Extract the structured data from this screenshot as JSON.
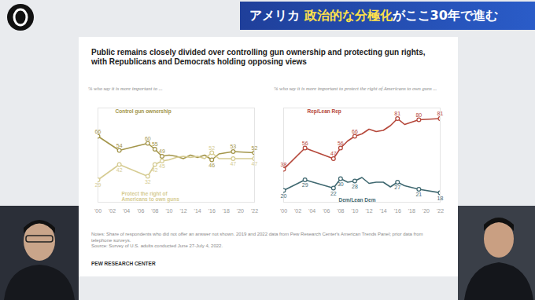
{
  "header": {
    "prefix": "アメリカ ",
    "highlight": "政治的な分極化",
    "suffix": "がここ30年で進む"
  },
  "title": "Public remains closely divided over controlling gun ownership and protecting gun rights, with Republicans and Democrats holding opposing views",
  "notes": [
    "Notes: Share of respondents who did not offer an answer not shown. 2019 and 2022 data from Pew Research Center's American Trends Panel; prior data from telephone surveys.",
    "Source: Survey of U.S. adults conducted June 27-July 4, 2022."
  ],
  "source": "PEW RESEARCH CENTER",
  "chart_data": [
    {
      "type": "line",
      "subtitle": "% who say it is more important to ...",
      "x": [
        2000,
        2003,
        2007,
        2008,
        2009,
        2010,
        2011,
        2012,
        2013,
        2014,
        2015,
        2016,
        2017,
        2019,
        2022
      ],
      "xlim": [
        2000,
        2022
      ],
      "xticks": [
        {
          "value": 2000,
          "label": "'00"
        },
        {
          "value": 2002,
          "label": "'02"
        },
        {
          "value": 2004,
          "label": "'04"
        },
        {
          "value": 2006,
          "label": "'06"
        },
        {
          "value": 2008,
          "label": "'08"
        },
        {
          "value": 2010,
          "label": "'10"
        },
        {
          "value": 2012,
          "label": "'12"
        },
        {
          "value": 2014,
          "label": "'14"
        },
        {
          "value": 2016,
          "label": "'16"
        },
        {
          "value": 2018,
          "label": "'18"
        },
        {
          "value": 2020,
          "label": "'20"
        },
        {
          "value": 2022,
          "label": "'22"
        }
      ],
      "ylim": [
        10,
        90
      ],
      "tick_labels": "x",
      "data_labels": true,
      "marker": "circle",
      "series": [
        {
          "name": "Control gun ownership",
          "color": "#a3954a",
          "values": [
            66,
            54,
            60,
            55,
            49,
            50,
            49,
            47,
            50,
            48,
            50,
            46,
            51,
            53,
            52
          ],
          "value_labels": [
            "66",
            "54",
            "60",
            "55",
            "49",
            null,
            null,
            null,
            null,
            null,
            null,
            "46",
            null,
            "53",
            "52"
          ]
        },
        {
          "name": "Protect the right of Americans to own guns",
          "color": "#d6cc93",
          "values": [
            29,
            42,
            32,
            42,
            45,
            46,
            48,
            49,
            48,
            49,
            47,
            52,
            47,
            47,
            47
          ],
          "value_labels": [
            "29",
            "42",
            "32",
            "42",
            "45",
            null,
            null,
            null,
            null,
            null,
            null,
            "52",
            null,
            "47",
            "47"
          ]
        }
      ]
    },
    {
      "type": "line",
      "subtitle": "% who say it is more important to protect the right of Americans to own guns ...",
      "x": [
        2000,
        2003,
        2007,
        2008,
        2009,
        2010,
        2011,
        2012,
        2013,
        2014,
        2015,
        2016,
        2017,
        2019,
        2022
      ],
      "xlim": [
        2000,
        2022
      ],
      "xticks": [
        {
          "value": 2000,
          "label": "'00"
        },
        {
          "value": 2002,
          "label": "'02"
        },
        {
          "value": 2004,
          "label": "'04"
        },
        {
          "value": 2006,
          "label": "'06"
        },
        {
          "value": 2008,
          "label": "'08"
        },
        {
          "value": 2010,
          "label": "'10"
        },
        {
          "value": 2012,
          "label": "'12"
        },
        {
          "value": 2014,
          "label": "'14"
        },
        {
          "value": 2016,
          "label": "'16"
        },
        {
          "value": 2018,
          "label": "'18"
        },
        {
          "value": 2020,
          "label": "'20"
        },
        {
          "value": 2022,
          "label": "'22"
        }
      ],
      "ylim": [
        10,
        90
      ],
      "tick_labels": "x",
      "data_labels": true,
      "marker": "circle",
      "series": [
        {
          "name": "Rep/Lean Rep",
          "color": "#b5473a",
          "values": [
            38,
            56,
            47,
            56,
            62,
            66,
            68,
            72,
            70,
            71,
            75,
            81,
            76,
            80,
            81
          ],
          "value_labels": [
            "38",
            "56",
            "47",
            "56",
            null,
            "66",
            null,
            null,
            null,
            null,
            null,
            "81",
            null,
            "80",
            "81"
          ]
        },
        {
          "name": "Dem/Lean Dem",
          "color": "#3f6870",
          "values": [
            20,
            29,
            22,
            30,
            27,
            28,
            31,
            26,
            27,
            27,
            23,
            27,
            24,
            21,
            18
          ],
          "value_labels": [
            "20",
            "29",
            "22",
            "30",
            null,
            "28",
            null,
            null,
            null,
            null,
            null,
            "27",
            null,
            "21",
            "18"
          ]
        }
      ]
    }
  ]
}
